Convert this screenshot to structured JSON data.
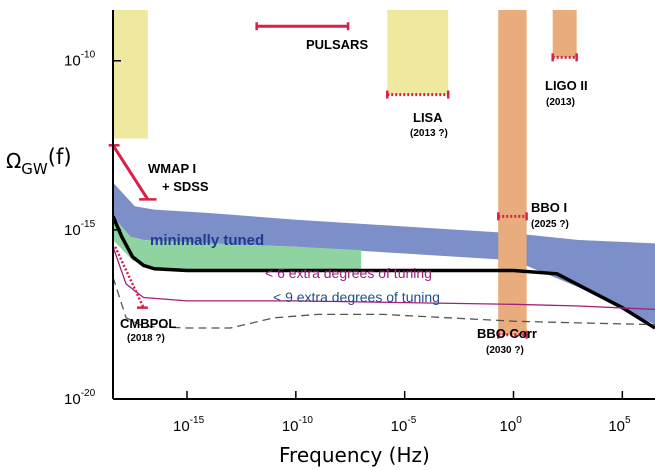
{
  "chart_data": {
    "type": "line",
    "title": "",
    "xlabel": "Frequency (Hz)",
    "ylabel_main": "Ω",
    "ylabel_sub": "GW",
    "ylabel_tail": "(f)",
    "log_scale": true,
    "xlim_exp": [
      -18.4,
      6.5
    ],
    "ylim_exp": [
      -20,
      -8.5
    ],
    "x_ticks": [
      {
        "base": "10",
        "exp": "-15",
        "value": -15
      },
      {
        "base": "10",
        "exp": "-10",
        "value": -10
      },
      {
        "base": "10",
        "exp": "-5",
        "value": -5
      },
      {
        "base": "10",
        "exp": "0",
        "value": 0
      },
      {
        "base": "10",
        "exp": "5",
        "value": 5
      }
    ],
    "y_ticks": [
      {
        "base": "10",
        "exp": "-10",
        "value": -10
      },
      {
        "base": "10",
        "exp": "-15",
        "value": -15
      },
      {
        "base": "10",
        "exp": "-20",
        "value": -20
      }
    ],
    "colors": {
      "detector_band": "#efe9a0",
      "detector_band_orange": "#e9ad7d",
      "constraint": "#d8204a",
      "blue_band": "#7d8fc8",
      "green_band": "#8fd4a0",
      "black_curve": "#000000",
      "pink_curve": "#a0207a",
      "dashed_curve": "#555555"
    },
    "bands": [
      {
        "name": "blue",
        "upper": [
          [
            -18.4,
            -13.6
          ],
          [
            -17.4,
            -14.3
          ],
          [
            -16.5,
            -14.4
          ],
          [
            -14,
            -14.5
          ],
          [
            -10,
            -14.7
          ],
          [
            -5,
            -14.9
          ],
          [
            0,
            -15.1
          ],
          [
            3,
            -15.3
          ],
          [
            6.5,
            -15.4
          ]
        ],
        "lower": [
          [
            -18.4,
            -14.6
          ],
          [
            -17.6,
            -15.2
          ],
          [
            -17,
            -15.3
          ],
          [
            -14,
            -15.4
          ],
          [
            -10,
            -15.5
          ],
          [
            -5,
            -15.7
          ],
          [
            0,
            -15.9
          ],
          [
            3,
            -16.7
          ],
          [
            6.5,
            -17.8
          ]
        ]
      },
      {
        "name": "green",
        "upper": [
          [
            -18.4,
            -14.6
          ],
          [
            -17.6,
            -15.2
          ],
          [
            -17,
            -15.3
          ],
          [
            -14,
            -15.4
          ],
          [
            -10,
            -15.5
          ],
          [
            -7,
            -15.6
          ]
        ],
        "lower": [
          [
            -18.4,
            -15.3
          ],
          [
            -17.5,
            -15.9
          ],
          [
            -16.5,
            -16.1
          ],
          [
            -14,
            -16.2
          ],
          [
            -10,
            -16.2
          ],
          [
            -7,
            -16.2
          ]
        ]
      }
    ],
    "series": [
      {
        "key": "black",
        "points": [
          [
            -18.4,
            -14.6
          ],
          [
            -18,
            -15.2
          ],
          [
            -17.5,
            -15.8
          ],
          [
            -17,
            -16.05
          ],
          [
            -16.5,
            -16.15
          ],
          [
            -15,
            -16.2
          ],
          [
            -12,
            -16.2
          ],
          [
            -9,
            -16.2
          ],
          [
            -6,
            -16.2
          ],
          [
            -3,
            -16.2
          ],
          [
            0,
            -16.2
          ],
          [
            2,
            -16.3
          ],
          [
            3.5,
            -16.8
          ],
          [
            5,
            -17.3
          ],
          [
            6.5,
            -17.9
          ]
        ]
      },
      {
        "key": "pink",
        "points": [
          [
            -18.4,
            -15.5
          ],
          [
            -17.8,
            -16.6
          ],
          [
            -17,
            -17.0
          ],
          [
            -15,
            -17.1
          ],
          [
            -10,
            -17.1
          ],
          [
            -5,
            -17.15
          ],
          [
            0,
            -17.2
          ],
          [
            3,
            -17.25
          ],
          [
            6.5,
            -17.35
          ]
        ]
      },
      {
        "key": "dashed",
        "points": [
          [
            -18.4,
            -16.4
          ],
          [
            -17.8,
            -17.6
          ],
          [
            -17,
            -17.85
          ],
          [
            -15,
            -17.9
          ],
          [
            -13,
            -17.9
          ],
          [
            -11,
            -17.6
          ],
          [
            -9,
            -17.5
          ],
          [
            -6,
            -17.5
          ],
          [
            -3,
            -17.6
          ],
          [
            0,
            -17.7
          ],
          [
            3,
            -17.75
          ],
          [
            6.5,
            -17.8
          ]
        ]
      }
    ],
    "detectors": [
      {
        "label": "LISA",
        "sublabel": "(2013 ?)",
        "x0": -5.8,
        "x1": -3.0,
        "ybottom": -11.0,
        "color": "band"
      },
      {
        "label": "LIGO II",
        "sublabel": "(2013)",
        "x0": 1.8,
        "x1": 2.9,
        "ybottom": -9.9,
        "color": "orange"
      },
      {
        "label": "BBO I",
        "sublabel": "(2025 ?)",
        "x0": -0.7,
        "x1": 0.6,
        "ybottom": -14.6,
        "color": "band"
      },
      {
        "label": "BBO Corr",
        "sublabel": "(2030 ?)",
        "x0": -0.7,
        "x1": 0.6,
        "ybottom": -18.1,
        "color": "orange"
      },
      {
        "label": "",
        "sublabel": "",
        "x0": -18.4,
        "x1": -16.8,
        "ybottom": -12.3,
        "color": "band"
      }
    ],
    "annotations": {
      "pulsars": "PULSARS",
      "wmap_1": "WMAP I",
      "wmap_2": "+ SDSS",
      "cmbpol": "CMBPOL",
      "cmbpol_year": "(2018 ?)",
      "minimally_tuned": "minimally tuned",
      "tuning_6": "< 6  extra degrees of tuning",
      "tuning_9": "< 9  extra degrees of tuning"
    }
  }
}
